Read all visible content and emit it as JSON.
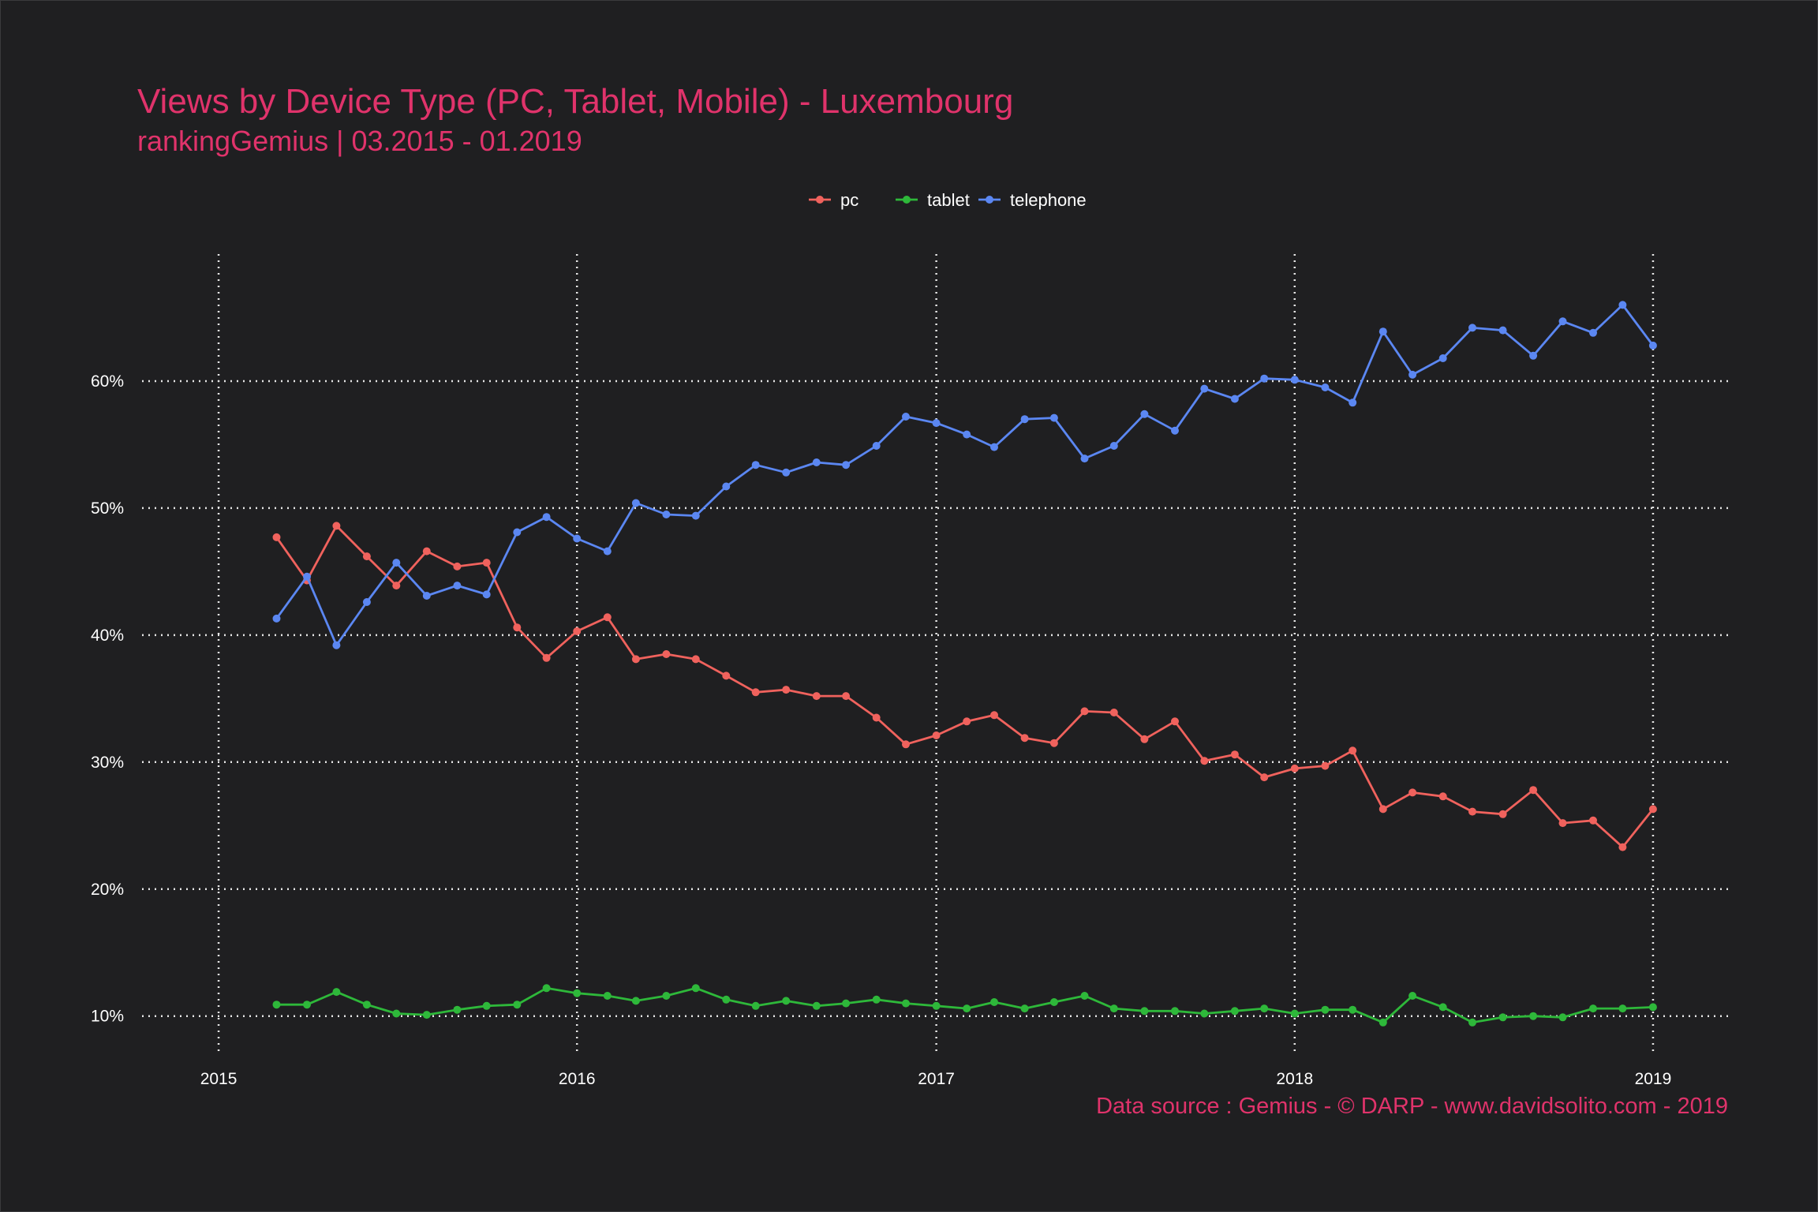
{
  "chart_data": {
    "type": "line",
    "title": "Views by Device Type (PC, Tablet, Mobile) - Luxembourg",
    "subtitle": "rankingGemius | 03.2015 - 01.2019",
    "caption": "Data source : Gemius - © DARP - www.davidsolito.com - 2019",
    "xlabel": "",
    "ylabel": "",
    "x_ticks": [
      "2015",
      "2016",
      "2017",
      "2018",
      "2019"
    ],
    "y_ticks": [
      "10%",
      "20%",
      "30%",
      "40%",
      "50%",
      "60%"
    ],
    "xlim": [
      "2014-10-15",
      "2019-03-20"
    ],
    "ylim": [
      7.0,
      70.0
    ],
    "grid": "dotted major gridlines",
    "legend": "top-center",
    "x": [
      "2015-03",
      "2015-04",
      "2015-05",
      "2015-06",
      "2015-07",
      "2015-08",
      "2015-09",
      "2015-10",
      "2015-11",
      "2015-12",
      "2016-01",
      "2016-02",
      "2016-03",
      "2016-04",
      "2016-05",
      "2016-06",
      "2016-07",
      "2016-08",
      "2016-09",
      "2016-10",
      "2016-11",
      "2016-12",
      "2017-01",
      "2017-02",
      "2017-03",
      "2017-04",
      "2017-05",
      "2017-06",
      "2017-07",
      "2017-08",
      "2017-09",
      "2017-10",
      "2017-11",
      "2017-12",
      "2018-01",
      "2018-02",
      "2018-03",
      "2018-04",
      "2018-05",
      "2018-06",
      "2018-07",
      "2018-08",
      "2018-09",
      "2018-10",
      "2018-11",
      "2018-12",
      "2019-01"
    ],
    "series": [
      {
        "name": "pc",
        "color": "#f0625d",
        "values": [
          47.7,
          44.3,
          48.6,
          46.2,
          43.9,
          46.6,
          45.4,
          45.7,
          40.6,
          38.2,
          40.3,
          41.4,
          38.1,
          38.5,
          38.1,
          36.8,
          35.5,
          35.7,
          35.2,
          35.2,
          33.5,
          31.4,
          32.1,
          33.2,
          33.7,
          31.9,
          31.5,
          34.0,
          33.9,
          31.8,
          33.2,
          30.1,
          30.6,
          28.8,
          29.5,
          29.7,
          30.9,
          26.3,
          27.6,
          27.3,
          26.1,
          25.9,
          27.8,
          25.2,
          25.4,
          23.3,
          26.3
        ]
      },
      {
        "name": "tablet",
        "color": "#2eb83a",
        "values": [
          10.9,
          10.9,
          11.9,
          10.9,
          10.2,
          10.1,
          10.5,
          10.8,
          10.9,
          12.2,
          11.8,
          11.6,
          11.2,
          11.6,
          12.2,
          11.3,
          10.8,
          11.2,
          10.8,
          11.0,
          11.3,
          11.0,
          10.8,
          10.6,
          11.1,
          10.6,
          11.1,
          11.6,
          10.6,
          10.4,
          10.4,
          10.2,
          10.4,
          10.6,
          10.2,
          10.5,
          10.5,
          9.5,
          11.6,
          10.7,
          9.5,
          9.9,
          10.0,
          9.9,
          10.6,
          10.6,
          10.7
        ]
      },
      {
        "name": "telephone",
        "color": "#5b87f2",
        "values": [
          41.3,
          44.6,
          39.2,
          42.6,
          45.7,
          43.1,
          43.9,
          43.2,
          48.1,
          49.3,
          47.6,
          46.6,
          50.4,
          49.5,
          49.4,
          51.7,
          53.4,
          52.8,
          53.6,
          53.4,
          54.9,
          57.2,
          56.7,
          55.8,
          54.8,
          57.0,
          57.1,
          53.9,
          54.9,
          57.4,
          56.1,
          59.4,
          58.6,
          60.2,
          60.1,
          59.5,
          58.3,
          63.9,
          60.5,
          61.8,
          64.2,
          64.0,
          62.0,
          64.7,
          63.8,
          66.0,
          62.8
        ]
      }
    ]
  }
}
